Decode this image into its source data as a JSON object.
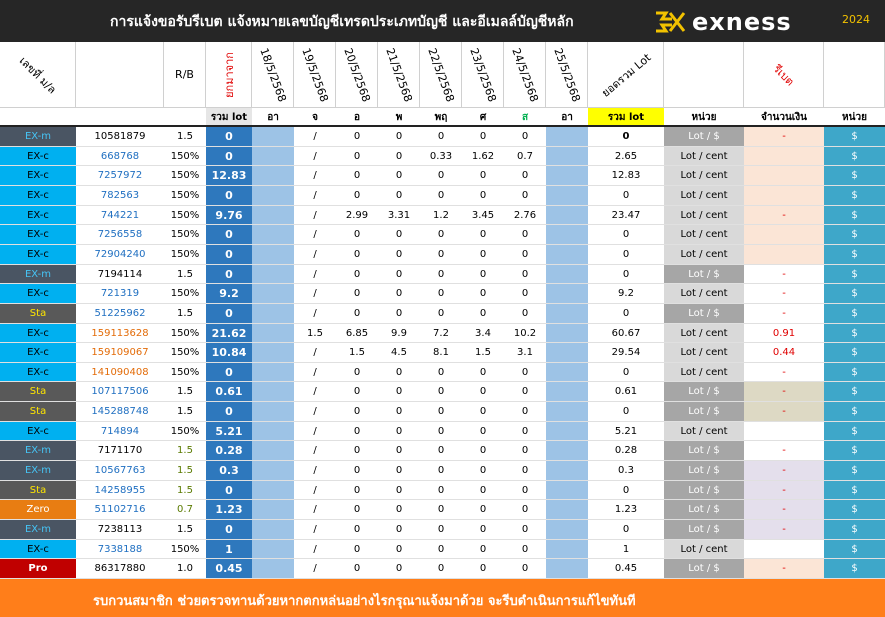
{
  "header": {
    "title": "การแจ้งขอรับรีเบต  แจ้งหมายเลขบัญชีเทรดประเภทบัญชี และอีเมลล์บัญชีหลัก",
    "brand": "exness",
    "year": "2024"
  },
  "columns": {
    "account_no": "เลขที่ ม/ล",
    "rb": "R/B",
    "carry": "ยกมาจาก",
    "dates": [
      "18/5/2568",
      "19/5/2568",
      "20/5/2568",
      "21/5/2568",
      "22/5/2568",
      "23/5/2568",
      "24/5/2568",
      "25/5/2568"
    ],
    "total_lot_header": "ยอดรวม Lot",
    "rebate": "รีเบต"
  },
  "subheader": {
    "sum_lot": "รวม lot",
    "days": [
      "อา",
      "จ",
      "อ",
      "พ",
      "พฤ",
      "ศ",
      "ส",
      "อา"
    ],
    "total_lot": "รวม lot",
    "unit": "หน่วย",
    "amount": "จำนวนเงิน",
    "unit2": "หน่วย"
  },
  "colors": {
    "exm": "#4a5563",
    "exc": "#00b0f0",
    "sta": "#595959",
    "zero": "#e87d12",
    "pro": "#c00000",
    "sum_col": "#2e78bd",
    "unit2_col": "#3ea7c9",
    "lot_dollar_bg": "#a6a6a6",
    "lot_cent_bg": "#d9d9d9",
    "highlight": "#ffff00"
  },
  "rows": [
    {
      "type": "EX-m",
      "acct": "10581879",
      "rb": "1.5",
      "sum": "0",
      "d": [
        "",
        "/",
        "0",
        "0",
        "0",
        "0",
        "0",
        ""
      ],
      "total": "0",
      "unit": "Lot / $",
      "amount": "-",
      "unit2": "$"
    },
    {
      "type": "EX-c",
      "acct": "668768",
      "rb": "150%",
      "sum": "0",
      "d": [
        "",
        "/",
        "0",
        "0",
        "0.33",
        "1.62",
        "0.7",
        ""
      ],
      "total": "2.65",
      "unit": "Lot / cent",
      "amount": "",
      "unit2": "$"
    },
    {
      "type": "EX-c",
      "acct": "7257972",
      "rb": "150%",
      "sum": "12.83",
      "d": [
        "",
        "/",
        "0",
        "0",
        "0",
        "0",
        "0",
        ""
      ],
      "total": "12.83",
      "unit": "Lot / cent",
      "amount": "",
      "unit2": "$"
    },
    {
      "type": "EX-c",
      "acct": "782563",
      "rb": "150%",
      "sum": "0",
      "d": [
        "",
        "/",
        "0",
        "0",
        "0",
        "0",
        "0",
        ""
      ],
      "total": "0",
      "unit": "Lot / cent",
      "amount": "",
      "unit2": "$"
    },
    {
      "type": "EX-c",
      "acct": "744221",
      "rb": "150%",
      "sum": "9.76",
      "d": [
        "",
        "/",
        "2.99",
        "3.31",
        "1.2",
        "3.45",
        "2.76",
        ""
      ],
      "total": "23.47",
      "unit": "Lot / cent",
      "amount": "-",
      "unit2": "$"
    },
    {
      "type": "EX-c",
      "acct": "7256558",
      "rb": "150%",
      "sum": "0",
      "d": [
        "",
        "/",
        "0",
        "0",
        "0",
        "0",
        "0",
        ""
      ],
      "total": "0",
      "unit": "Lot / cent",
      "amount": "",
      "unit2": "$"
    },
    {
      "type": "EX-c",
      "acct": "72904240",
      "rb": "150%",
      "sum": "0",
      "d": [
        "",
        "/",
        "0",
        "0",
        "0",
        "0",
        "0",
        ""
      ],
      "total": "0",
      "unit": "Lot / cent",
      "amount": "",
      "unit2": "$"
    },
    {
      "type": "EX-m",
      "acct": "7194114",
      "rb": "1.5",
      "sum": "0",
      "d": [
        "",
        "/",
        "0",
        "0",
        "0",
        "0",
        "0",
        ""
      ],
      "total": "0",
      "unit": "Lot / $",
      "amount": "-",
      "unit2": "$"
    },
    {
      "type": "EX-c",
      "acct": "721319",
      "rb": "150%",
      "sum": "9.2",
      "d": [
        "",
        "/",
        "0",
        "0",
        "0",
        "0",
        "0",
        ""
      ],
      "total": "9.2",
      "unit": "Lot / cent",
      "amount": "-",
      "unit2": "$"
    },
    {
      "type": "Sta",
      "acct": "51225962",
      "rb": "1.5",
      "sum": "0",
      "d": [
        "",
        "/",
        "0",
        "0",
        "0",
        "0",
        "0",
        ""
      ],
      "total": "0",
      "unit": "Lot / $",
      "amount": "-",
      "unit2": "$"
    },
    {
      "type": "EX-c",
      "acct": "159113628",
      "rb": "150%",
      "sum": "21.62",
      "d": [
        "",
        "1.5",
        "6.85",
        "9.9",
        "7.2",
        "3.4",
        "10.2",
        ""
      ],
      "total": "60.67",
      "unit": "Lot / cent",
      "amount": "0.91",
      "unit2": "$"
    },
    {
      "type": "EX-c",
      "acct": "159109067",
      "rb": "150%",
      "sum": "10.84",
      "d": [
        "",
        "/",
        "1.5",
        "4.5",
        "8.1",
        "1.5",
        "3.1",
        ""
      ],
      "total": "29.54",
      "unit": "Lot / cent",
      "amount": "0.44",
      "unit2": "$"
    },
    {
      "type": "EX-c",
      "acct": "141090408",
      "rb": "150%",
      "sum": "0",
      "d": [
        "",
        "/",
        "0",
        "0",
        "0",
        "0",
        "0",
        ""
      ],
      "total": "0",
      "unit": "Lot / cent",
      "amount": "-",
      "unit2": "$"
    },
    {
      "type": "Sta",
      "acct": "107117506",
      "rb": "1.5",
      "sum": "0.61",
      "d": [
        "",
        "/",
        "0",
        "0",
        "0",
        "0",
        "0",
        ""
      ],
      "total": "0.61",
      "unit": "Lot / $",
      "amount": "-",
      "unit2": "$"
    },
    {
      "type": "Sta",
      "acct": "145288748",
      "rb": "1.5",
      "sum": "0",
      "d": [
        "",
        "/",
        "0",
        "0",
        "0",
        "0",
        "0",
        ""
      ],
      "total": "0",
      "unit": "Lot / $",
      "amount": "-",
      "unit2": "$"
    },
    {
      "type": "EX-c",
      "acct": "714894",
      "rb": "150%",
      "sum": "5.21",
      "d": [
        "",
        "/",
        "0",
        "0",
        "0",
        "0",
        "0",
        ""
      ],
      "total": "5.21",
      "unit": "Lot / cent",
      "amount": "",
      "unit2": "$"
    },
    {
      "type": "EX-m",
      "acct": "7171170",
      "rb": "1.5",
      "sum": "0.28",
      "d": [
        "",
        "/",
        "0",
        "0",
        "0",
        "0",
        "0",
        ""
      ],
      "total": "0.28",
      "unit": "Lot / $",
      "amount": "-",
      "unit2": "$"
    },
    {
      "type": "EX-m",
      "acct": "10567763",
      "rb": "1.5",
      "sum": "0.3",
      "d": [
        "",
        "/",
        "0",
        "0",
        "0",
        "0",
        "0",
        ""
      ],
      "total": "0.3",
      "unit": "Lot / $",
      "amount": "-",
      "unit2": "$"
    },
    {
      "type": "Sta",
      "acct": "14258955",
      "rb": "1.5",
      "sum": "0",
      "d": [
        "",
        "/",
        "0",
        "0",
        "0",
        "0",
        "0",
        ""
      ],
      "total": "0",
      "unit": "Lot / $",
      "amount": "-",
      "unit2": "$"
    },
    {
      "type": "Zero",
      "acct": "51102716",
      "rb": "0.7",
      "sum": "1.23",
      "d": [
        "",
        "/",
        "0",
        "0",
        "0",
        "0",
        "0",
        ""
      ],
      "total": "1.23",
      "unit": "Lot / $",
      "amount": "-",
      "unit2": "$"
    },
    {
      "type": "EX-m",
      "acct": "7238113",
      "rb": "1.5",
      "sum": "0",
      "d": [
        "",
        "/",
        "0",
        "0",
        "0",
        "0",
        "0",
        ""
      ],
      "total": "0",
      "unit": "Lot / $",
      "amount": "-",
      "unit2": "$"
    },
    {
      "type": "EX-c",
      "acct": "7338188",
      "rb": "150%",
      "sum": "1",
      "d": [
        "",
        "/",
        "0",
        "0",
        "0",
        "0",
        "0",
        ""
      ],
      "total": "1",
      "unit": "Lot / cent",
      "amount": "",
      "unit2": "$"
    },
    {
      "type": "Pro",
      "acct": "86317880",
      "rb": "1.0",
      "sum": "0.45",
      "d": [
        "",
        "/",
        "0",
        "0",
        "0",
        "0",
        "0",
        ""
      ],
      "total": "0.45",
      "unit": "Lot / $",
      "amount": "-",
      "unit2": "$"
    }
  ],
  "footer": {
    "message": "รบกวนสมาชิก ช่วยตรวจทานด้วยหากตกหล่นอย่างไรกรุณาแจ้งมาด้วย จะรีบดำเนินการแก้ไขทันที"
  }
}
